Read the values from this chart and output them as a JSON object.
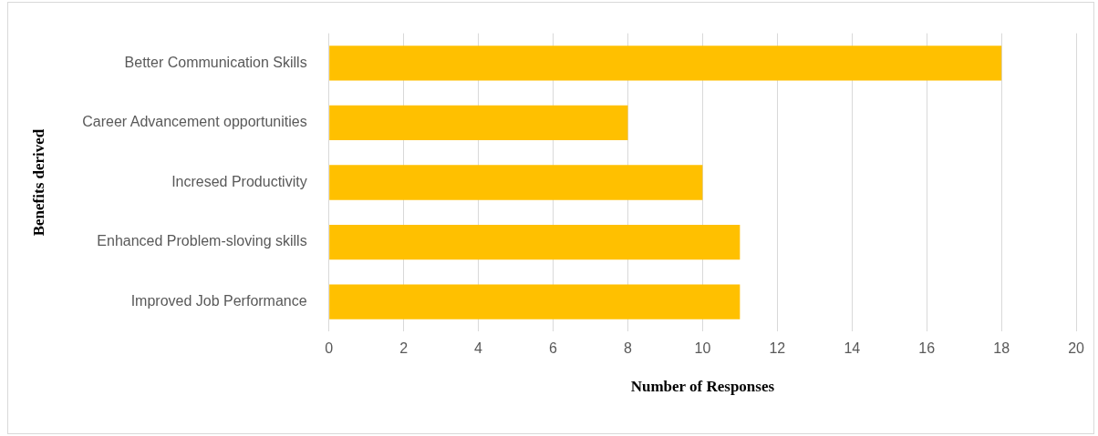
{
  "chart_data": {
    "type": "bar",
    "orientation": "horizontal",
    "categories": [
      "Better Communication Skills",
      "Career Advancement opportunities",
      "Incresed Productivity",
      "Enhanced Problem-sloving skills",
      "Improved Job Performance"
    ],
    "values": [
      18,
      8,
      10,
      11,
      11
    ],
    "color": "#ffc000",
    "xlim": [
      0,
      20
    ],
    "xticks": [
      0,
      2,
      4,
      6,
      8,
      10,
      12,
      14,
      16,
      18,
      20
    ],
    "xlabel": "Number of Responses",
    "ylabel": "Benefits derived",
    "grid": "x"
  }
}
